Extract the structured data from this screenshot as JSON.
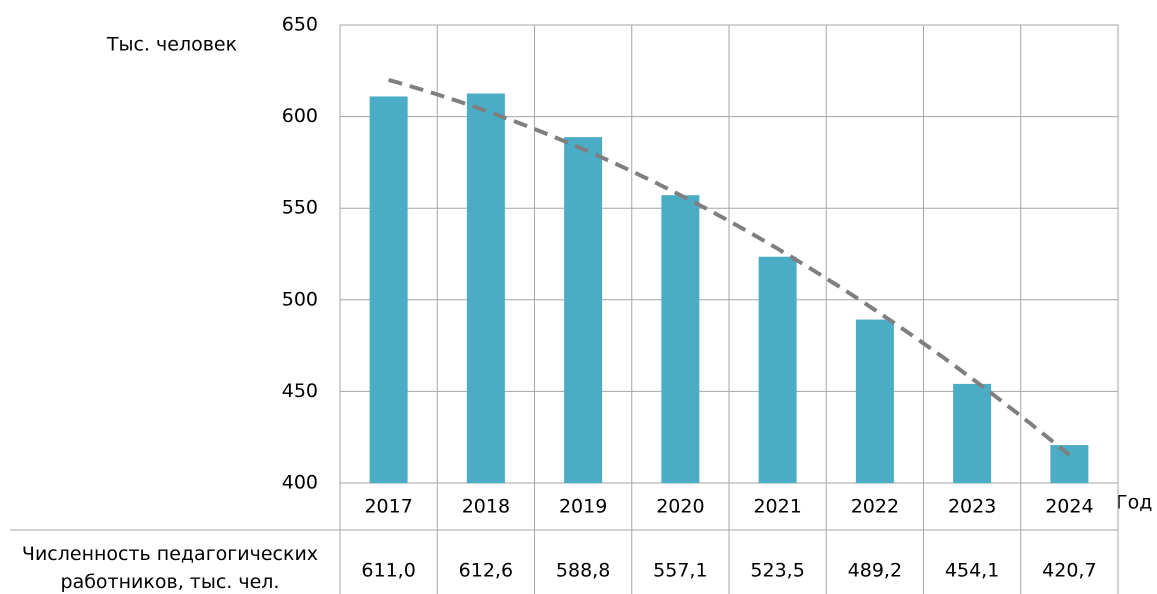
{
  "chart_data": {
    "type": "bar",
    "y_label": "Тыс. человек",
    "x_label": "Год",
    "categories": [
      "2017",
      "2018",
      "2019",
      "2020",
      "2021",
      "2022",
      "2023",
      "2024"
    ],
    "series": [
      {
        "name": "Численность педагогических работников, тыс. чел.",
        "color": "#4bacc6",
        "values": [
          611.0,
          612.6,
          588.8,
          557.1,
          523.5,
          489.2,
          454.1,
          420.7
        ],
        "value_labels": [
          "611,0",
          "612,6",
          "588,8",
          "557,1",
          "523,5",
          "489,2",
          "454,1",
          "420,7"
        ]
      }
    ],
    "ylim": [
      400,
      650
    ],
    "yticks": [
      400,
      450,
      500,
      550,
      600,
      650
    ],
    "grid": true,
    "trendline": "polynomial",
    "trendline_color": "#7f7f7f"
  }
}
